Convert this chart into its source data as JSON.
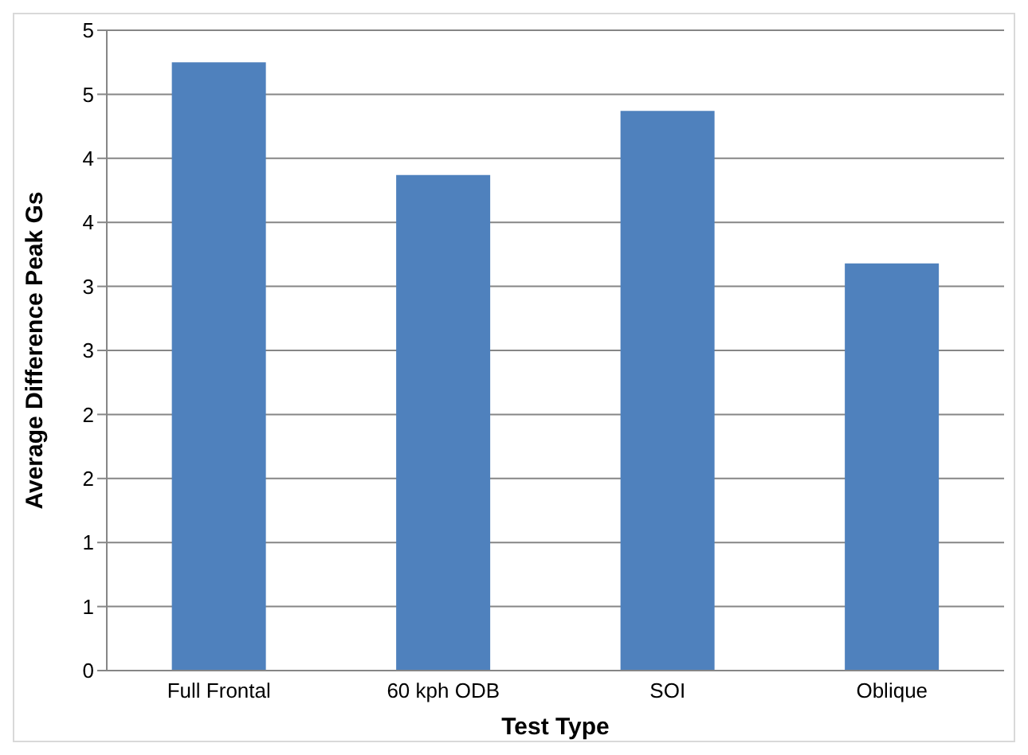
{
  "chart_data": {
    "type": "bar",
    "xlabel": "Test Type",
    "ylabel": "Average Difference Peak Gs",
    "categories": [
      "Full Frontal",
      "60 kph ODB",
      "SOI",
      "Oblique"
    ],
    "values": [
      4.75,
      3.87,
      4.37,
      3.18
    ],
    "color": "#4f81bd",
    "ylim": [
      0,
      5
    ],
    "yticks": [
      0,
      {
        "value": 0.5,
        "label": "1"
      },
      1,
      {
        "value": 1.5,
        "label": "2"
      },
      2,
      {
        "value": 2.5,
        "label": "3"
      },
      3,
      {
        "value": 3.5,
        "label": "4"
      },
      4,
      {
        "value": 4.5,
        "label": "5"
      },
      5
    ],
    "grid": "y"
  }
}
